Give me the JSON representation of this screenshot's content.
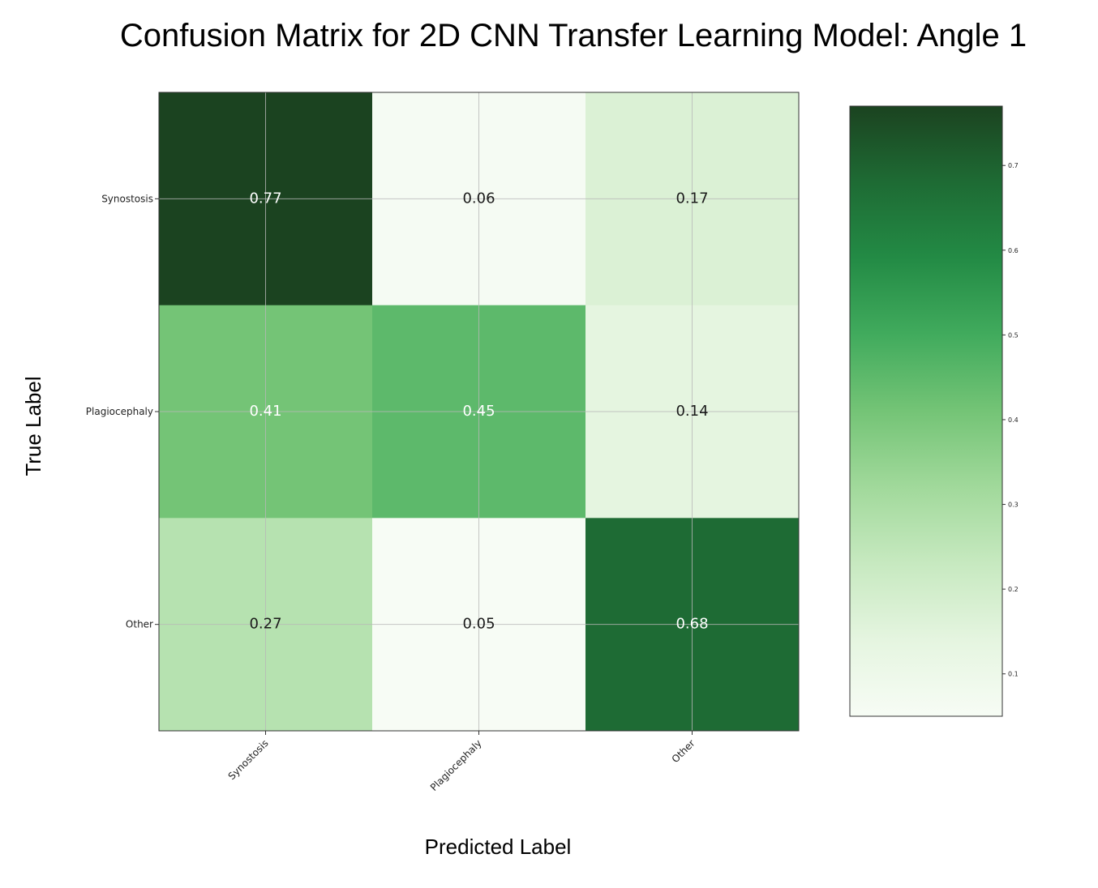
{
  "chart_data": {
    "type": "heatmap",
    "title": "Confusion Matrix for 2D CNN Transfer Learning Model: Angle 1",
    "xlabel": "Predicted Label",
    "ylabel": "True Label",
    "x_categories": [
      "Synostosis",
      "Plagiocephaly",
      "Other"
    ],
    "y_categories": [
      "Synostosis",
      "Plagiocephaly",
      "Other"
    ],
    "values": [
      [
        0.77,
        0.06,
        0.17
      ],
      [
        0.41,
        0.45,
        0.14
      ],
      [
        0.27,
        0.05,
        0.68
      ]
    ],
    "value_labels": [
      [
        "0.77",
        "0.06",
        "0.17"
      ],
      [
        "0.41",
        "0.45",
        "0.14"
      ],
      [
        "0.27",
        "0.05",
        "0.68"
      ]
    ],
    "colormap": "Greens",
    "colorbar": {
      "min": 0.05,
      "max": 0.77,
      "ticks": [
        0.1,
        0.2,
        0.3,
        0.4,
        0.5,
        0.6,
        0.7
      ],
      "tick_labels": [
        "0.1",
        "0.2",
        "0.3",
        "0.4",
        "0.5",
        "0.6",
        "0.7"
      ]
    },
    "grid": true
  }
}
